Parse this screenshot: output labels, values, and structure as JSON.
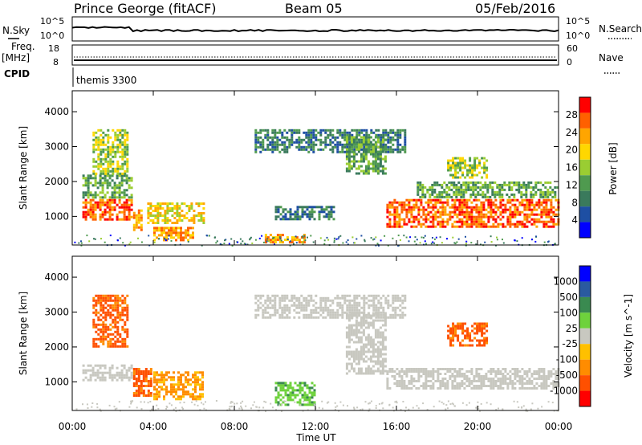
{
  "header": {
    "station": "Prince George (fitACF)",
    "beam": "Beam 05",
    "date": "05/Feb/2016"
  },
  "sky_panel": {
    "left_label": "N.Sky",
    "right_label": "N.Search",
    "tick_top": "10^5",
    "tick_bottom": "10^0"
  },
  "freq_panel": {
    "left_label_1": "Freq.",
    "left_label_2": "[MHz]",
    "left_label_3": "CPID",
    "right_label": "Nave",
    "left_ticks": [
      "18",
      "8"
    ],
    "right_ticks": [
      "60",
      "0"
    ],
    "cpid_name": "themis 3300"
  },
  "colors": {
    "power": [
      "#0000ff",
      "#1e4fa3",
      "#3a7a5c",
      "#4f9a4f",
      "#9acd32",
      "#ffd700",
      "#ffa500",
      "#ff6000",
      "#ff0000"
    ],
    "velocity": [
      "#ff0000",
      "#ff5000",
      "#ff8c00",
      "#ffc000",
      "#c8c8c0",
      "#6ed23c",
      "#3a8a50",
      "#2a5aa0",
      "#0000ff"
    ],
    "ground_scatter": "#c8c8c0"
  },
  "chart_data": [
    {
      "type": "heatmap",
      "title": "Power",
      "ylabel": "Slant Range [km]",
      "xlabel": "",
      "x_ticks": [
        "00:00",
        "04:00",
        "08:00",
        "12:00",
        "16:00",
        "20:00",
        "00:00"
      ],
      "x_range_hours": [
        0,
        24
      ],
      "y_ticks": [
        1000,
        2000,
        3000,
        4000
      ],
      "ylim": [
        180,
        4600
      ],
      "colorbar": {
        "label": "Power [dB]",
        "ticks": [
          4,
          8,
          12,
          16,
          20,
          24,
          28
        ],
        "range": [
          0,
          32
        ]
      },
      "regions": [
        {
          "t": [
            0.5,
            3.0
          ],
          "r": [
            850,
            1500
          ],
          "level": 28
        },
        {
          "t": [
            0.5,
            3.0
          ],
          "r": [
            1500,
            2200
          ],
          "level": 12
        },
        {
          "t": [
            1.0,
            2.8
          ],
          "r": [
            2200,
            3500
          ],
          "level": 16
        },
        {
          "t": [
            3.0,
            3.5
          ],
          "r": [
            600,
            1200
          ],
          "level": 24
        },
        {
          "t": [
            3.7,
            6.5
          ],
          "r": [
            800,
            1400
          ],
          "level": 20
        },
        {
          "t": [
            4.0,
            6.0
          ],
          "r": [
            300,
            700
          ],
          "level": 24
        },
        {
          "t": [
            9.0,
            16.5
          ],
          "r": [
            2800,
            3500
          ],
          "level": 8
        },
        {
          "t": [
            10.0,
            13.0
          ],
          "r": [
            900,
            1300
          ],
          "level": 8
        },
        {
          "t": [
            9.5,
            11.5
          ],
          "r": [
            250,
            500
          ],
          "level": 24
        },
        {
          "t": [
            13.5,
            15.5
          ],
          "r": [
            2200,
            3300
          ],
          "level": 12
        },
        {
          "t": [
            15.5,
            24.0
          ],
          "r": [
            700,
            1500
          ],
          "level": 28
        },
        {
          "t": [
            17.0,
            24.0
          ],
          "r": [
            1500,
            2000
          ],
          "level": 12
        },
        {
          "t": [
            18.5,
            20.5
          ],
          "r": [
            2100,
            2700
          ],
          "level": 16
        }
      ]
    },
    {
      "type": "heatmap",
      "title": "Velocity",
      "ylabel": "Slant Range [km]",
      "xlabel": "Time UT",
      "x_ticks": [
        "00:00",
        "04:00",
        "08:00",
        "12:00",
        "16:00",
        "20:00",
        "00:00"
      ],
      "x_range_hours": [
        0,
        24
      ],
      "y_ticks": [
        1000,
        2000,
        3000,
        4000
      ],
      "ylim": [
        180,
        4600
      ],
      "colorbar": {
        "label": "Velocity [m s^-1]",
        "ticks": [
          "1000",
          "500",
          "100",
          "25",
          "-25",
          "-100",
          "-500",
          "-1000"
        ]
      },
      "regions": [
        {
          "t": [
            0.5,
            3.0
          ],
          "r": [
            1000,
            1500
          ],
          "level": "ground"
        },
        {
          "t": [
            1.0,
            2.8
          ],
          "r": [
            2000,
            3500
          ],
          "level": "-500"
        },
        {
          "t": [
            3.0,
            4.0
          ],
          "r": [
            600,
            1400
          ],
          "level": "-500"
        },
        {
          "t": [
            4.0,
            6.5
          ],
          "r": [
            500,
            1300
          ],
          "level": "-100"
        },
        {
          "t": [
            9.0,
            16.5
          ],
          "r": [
            2800,
            3500
          ],
          "level": "ground"
        },
        {
          "t": [
            10.0,
            12.0
          ],
          "r": [
            300,
            1000
          ],
          "level": "100"
        },
        {
          "t": [
            13.5,
            15.5
          ],
          "r": [
            1200,
            3000
          ],
          "level": "ground"
        },
        {
          "t": [
            15.5,
            24.0
          ],
          "r": [
            800,
            1400
          ],
          "level": "ground"
        },
        {
          "t": [
            18.5,
            20.5
          ],
          "r": [
            2000,
            2700
          ],
          "level": "-500"
        }
      ]
    }
  ]
}
